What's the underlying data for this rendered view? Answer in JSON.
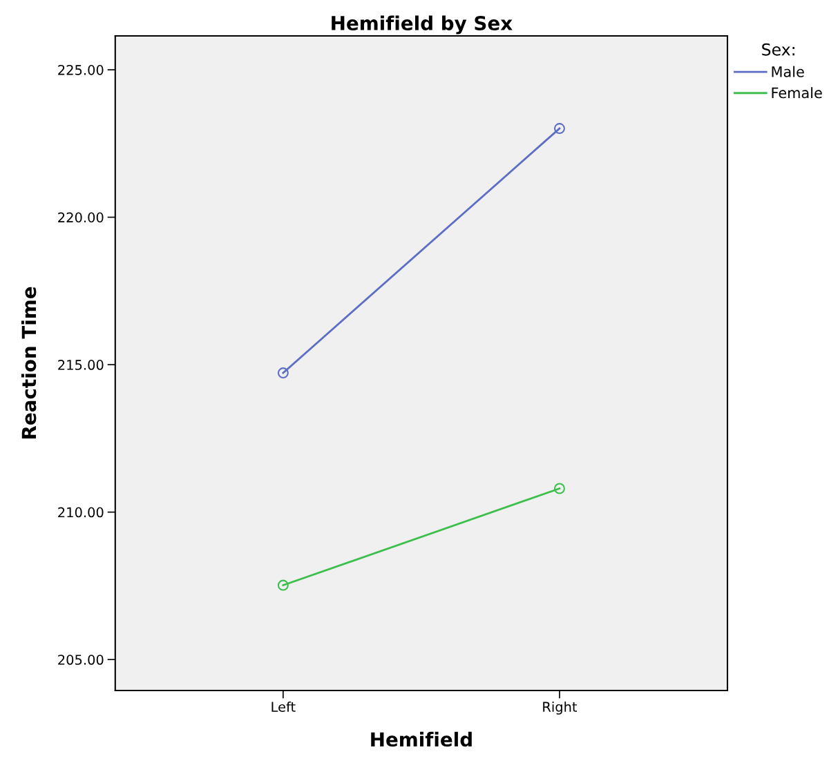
{
  "chart_data": {
    "type": "line",
    "title": "Hemifield by Sex",
    "xlabel": "Hemifield",
    "ylabel": "Reaction Time",
    "legend_title": "Sex:",
    "legend": "top right",
    "marker": "circle",
    "line_style": "solid",
    "grid": false,
    "categories": [
      "Left",
      "Right"
    ],
    "series": [
      {
        "name": "Male",
        "color": "#5b6ec4",
        "values": [
          214.72,
          223.01
        ]
      },
      {
        "name": "Female",
        "color": "#3dbf4b",
        "values": [
          207.52,
          210.8
        ]
      }
    ],
    "ylim": [
      203.95,
      226.15
    ],
    "yticks": [
      {
        "value": 205,
        "label": "205.00"
      },
      {
        "value": 210,
        "label": "210.00"
      },
      {
        "value": 215,
        "label": "215.00"
      },
      {
        "value": 220,
        "label": "220.00"
      },
      {
        "value": 225,
        "label": "225.00"
      }
    ]
  }
}
